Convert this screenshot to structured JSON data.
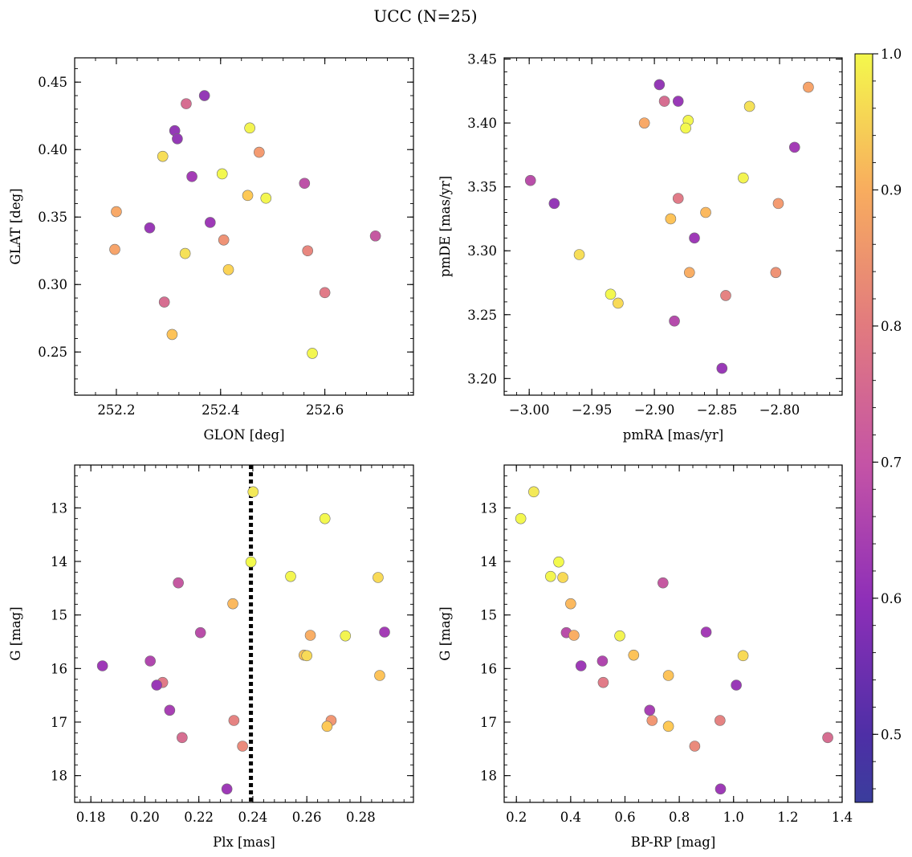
{
  "figure": {
    "title": "UCC (N=25)"
  },
  "colorbar": {
    "min": 0.45,
    "max": 1.0,
    "ticks": [
      0.5,
      0.6,
      0.7,
      0.8,
      0.9,
      1.0
    ],
    "tick_labels": [
      "0.5",
      "0.6",
      "0.7",
      "0.8",
      "0.9",
      "1.0"
    ],
    "colormap": "plasma"
  },
  "chart_data": [
    {
      "type": "scatter",
      "panel": "top-left",
      "xlabel": "GLON [deg]",
      "ylabel": "GLAT [deg]",
      "xlim": [
        252.12,
        252.77
      ],
      "ylim": [
        0.218,
        0.468
      ],
      "xticks": [
        252.2,
        252.4,
        252.6
      ],
      "xtick_labels": [
        "252.2",
        "252.4",
        "252.6"
      ],
      "yticks": [
        0.25,
        0.3,
        0.35,
        0.4,
        0.45
      ],
      "ytick_labels": [
        "0.25",
        "0.30",
        "0.35",
        "0.40",
        "0.45"
      ],
      "x_minor_step": 0.04,
      "y_minor_step": 0.01,
      "points": [
        {
          "x": 252.369,
          "y": 0.44,
          "c": 0.47
        },
        {
          "x": 252.334,
          "y": 0.434,
          "c": 0.63
        },
        {
          "x": 252.312,
          "y": 0.414,
          "c": 0.47
        },
        {
          "x": 252.456,
          "y": 0.416,
          "c": 0.97
        },
        {
          "x": 252.317,
          "y": 0.408,
          "c": 0.47
        },
        {
          "x": 252.474,
          "y": 0.398,
          "c": 0.74
        },
        {
          "x": 252.289,
          "y": 0.395,
          "c": 0.89
        },
        {
          "x": 252.403,
          "y": 0.382,
          "c": 0.99
        },
        {
          "x": 252.345,
          "y": 0.38,
          "c": 0.5
        },
        {
          "x": 252.561,
          "y": 0.375,
          "c": 0.56
        },
        {
          "x": 252.452,
          "y": 0.366,
          "c": 0.83
        },
        {
          "x": 252.487,
          "y": 0.364,
          "c": 0.98
        },
        {
          "x": 252.2,
          "y": 0.354,
          "c": 0.77
        },
        {
          "x": 252.38,
          "y": 0.346,
          "c": 0.49
        },
        {
          "x": 252.264,
          "y": 0.342,
          "c": 0.48
        },
        {
          "x": 252.697,
          "y": 0.336,
          "c": 0.58
        },
        {
          "x": 252.406,
          "y": 0.333,
          "c": 0.72
        },
        {
          "x": 252.197,
          "y": 0.326,
          "c": 0.76
        },
        {
          "x": 252.567,
          "y": 0.325,
          "c": 0.69
        },
        {
          "x": 252.332,
          "y": 0.323,
          "c": 0.9
        },
        {
          "x": 252.415,
          "y": 0.311,
          "c": 0.86
        },
        {
          "x": 252.6,
          "y": 0.294,
          "c": 0.66
        },
        {
          "x": 252.292,
          "y": 0.287,
          "c": 0.63
        },
        {
          "x": 252.307,
          "y": 0.263,
          "c": 0.82
        },
        {
          "x": 252.576,
          "y": 0.249,
          "c": 0.98
        }
      ]
    },
    {
      "type": "scatter",
      "panel": "top-right",
      "xlabel": "pmRA [mas/yr]",
      "ylabel": "pmDE [mas/yr]",
      "xlim": [
        -3.02,
        -2.75
      ],
      "ylim": [
        3.187,
        3.451
      ],
      "xticks": [
        -3.0,
        -2.95,
        -2.9,
        -2.85,
        -2.8
      ],
      "xtick_labels": [
        "−3.00",
        "−2.95",
        "−2.90",
        "−2.85",
        "−2.80"
      ],
      "yticks": [
        3.2,
        3.25,
        3.3,
        3.35,
        3.4,
        3.45
      ],
      "ytick_labels": [
        "3.20",
        "3.25",
        "3.30",
        "3.35",
        "3.40",
        "3.45"
      ],
      "x_minor_step": 0.01,
      "y_minor_step": 0.01,
      "points": [
        {
          "x": -2.896,
          "y": 3.43,
          "c": 0.47
        },
        {
          "x": -2.777,
          "y": 3.428,
          "c": 0.76
        },
        {
          "x": -2.892,
          "y": 3.417,
          "c": 0.63
        },
        {
          "x": -2.881,
          "y": 3.417,
          "c": 0.48
        },
        {
          "x": -2.824,
          "y": 3.413,
          "c": 0.9
        },
        {
          "x": -2.873,
          "y": 3.402,
          "c": 0.98
        },
        {
          "x": -2.908,
          "y": 3.4,
          "c": 0.77
        },
        {
          "x": -2.875,
          "y": 3.396,
          "c": 0.99
        },
        {
          "x": -2.788,
          "y": 3.381,
          "c": 0.5
        },
        {
          "x": -2.829,
          "y": 3.357,
          "c": 0.97
        },
        {
          "x": -2.999,
          "y": 3.355,
          "c": 0.55
        },
        {
          "x": -2.98,
          "y": 3.337,
          "c": 0.47
        },
        {
          "x": -2.801,
          "y": 3.337,
          "c": 0.74
        },
        {
          "x": -2.881,
          "y": 3.341,
          "c": 0.66
        },
        {
          "x": -2.859,
          "y": 3.33,
          "c": 0.8
        },
        {
          "x": -2.887,
          "y": 3.325,
          "c": 0.82
        },
        {
          "x": -2.868,
          "y": 3.31,
          "c": 0.49
        },
        {
          "x": -2.96,
          "y": 3.297,
          "c": 0.89
        },
        {
          "x": -2.803,
          "y": 3.283,
          "c": 0.72
        },
        {
          "x": -2.872,
          "y": 3.283,
          "c": 0.78
        },
        {
          "x": -2.935,
          "y": 3.266,
          "c": 0.99
        },
        {
          "x": -2.843,
          "y": 3.265,
          "c": 0.68
        },
        {
          "x": -2.929,
          "y": 3.259,
          "c": 0.88
        },
        {
          "x": -2.884,
          "y": 3.245,
          "c": 0.54
        },
        {
          "x": -2.846,
          "y": 3.208,
          "c": 0.48
        }
      ]
    },
    {
      "type": "scatter",
      "panel": "bottom-left",
      "xlabel": "Plx [mas]",
      "ylabel": "G [mag]",
      "xlim": [
        0.174,
        0.2995
      ],
      "ylim": [
        18.5,
        12.2
      ],
      "y_inverted": true,
      "xticks": [
        0.18,
        0.2,
        0.22,
        0.24,
        0.26,
        0.28
      ],
      "xtick_labels": [
        "0.18",
        "0.20",
        "0.22",
        "0.24",
        "0.26",
        "0.28"
      ],
      "yticks": [
        13,
        14,
        15,
        16,
        17,
        18
      ],
      "ytick_labels": [
        "13",
        "14",
        "15",
        "16",
        "17",
        "18"
      ],
      "x_minor_step": 0.004,
      "y_minor_step": 0.2,
      "vline": {
        "x": 0.2393,
        "style": "dotted",
        "color": "#000000"
      },
      "points": [
        {
          "x": 0.2401,
          "y": 12.7,
          "c": 0.92
        },
        {
          "x": 0.2667,
          "y": 13.2,
          "c": 0.99
        },
        {
          "x": 0.2393,
          "y": 14.01,
          "c": 1.0
        },
        {
          "x": 0.254,
          "y": 14.28,
          "c": 0.98
        },
        {
          "x": 0.2864,
          "y": 14.3,
          "c": 0.88
        },
        {
          "x": 0.2124,
          "y": 14.4,
          "c": 0.58
        },
        {
          "x": 0.2326,
          "y": 14.79,
          "c": 0.8
        },
        {
          "x": 0.2206,
          "y": 15.33,
          "c": 0.55
        },
        {
          "x": 0.2613,
          "y": 15.38,
          "c": 0.78
        },
        {
          "x": 0.2743,
          "y": 15.39,
          "c": 0.97
        },
        {
          "x": 0.2888,
          "y": 15.32,
          "c": 0.5
        },
        {
          "x": 0.259,
          "y": 15.75,
          "c": 0.82
        },
        {
          "x": 0.26,
          "y": 15.76,
          "c": 0.88
        },
        {
          "x": 0.1843,
          "y": 15.95,
          "c": 0.49
        },
        {
          "x": 0.202,
          "y": 15.86,
          "c": 0.53
        },
        {
          "x": 0.287,
          "y": 16.13,
          "c": 0.82
        },
        {
          "x": 0.2066,
          "y": 16.26,
          "c": 0.66
        },
        {
          "x": 0.2044,
          "y": 16.31,
          "c": 0.48
        },
        {
          "x": 0.2092,
          "y": 16.78,
          "c": 0.51
        },
        {
          "x": 0.233,
          "y": 16.97,
          "c": 0.68
        },
        {
          "x": 0.269,
          "y": 16.97,
          "c": 0.73
        },
        {
          "x": 0.2675,
          "y": 17.08,
          "c": 0.83
        },
        {
          "x": 0.2138,
          "y": 17.29,
          "c": 0.63
        },
        {
          "x": 0.2362,
          "y": 17.45,
          "c": 0.7
        },
        {
          "x": 0.2304,
          "y": 18.25,
          "c": 0.49
        }
      ]
    },
    {
      "type": "scatter",
      "panel": "bottom-right",
      "xlabel": "BP-RP [mag]",
      "ylabel": "G [mag]",
      "xlim": [
        0.155,
        1.4
      ],
      "ylim": [
        18.5,
        12.2
      ],
      "y_inverted": true,
      "xticks": [
        0.2,
        0.4,
        0.6,
        0.8,
        1.0,
        1.2,
        1.4
      ],
      "xtick_labels": [
        "0.2",
        "0.4",
        "0.6",
        "0.8",
        "1.0",
        "1.2",
        "1.4"
      ],
      "yticks": [
        13,
        14,
        15,
        16,
        17,
        18
      ],
      "ytick_labels": [
        "13",
        "14",
        "15",
        "16",
        "17",
        "18"
      ],
      "x_minor_step": 0.05,
      "y_minor_step": 0.2,
      "points": [
        {
          "x": 0.264,
          "y": 12.7,
          "c": 0.92
        },
        {
          "x": 0.216,
          "y": 13.2,
          "c": 0.99
        },
        {
          "x": 0.356,
          "y": 14.01,
          "c": 1.0
        },
        {
          "x": 0.326,
          "y": 14.28,
          "c": 0.98
        },
        {
          "x": 0.371,
          "y": 14.3,
          "c": 0.88
        },
        {
          "x": 0.74,
          "y": 14.4,
          "c": 0.58
        },
        {
          "x": 0.4,
          "y": 14.79,
          "c": 0.8
        },
        {
          "x": 0.384,
          "y": 15.33,
          "c": 0.55
        },
        {
          "x": 0.412,
          "y": 15.38,
          "c": 0.78
        },
        {
          "x": 0.581,
          "y": 15.39,
          "c": 0.97
        },
        {
          "x": 0.899,
          "y": 15.32,
          "c": 0.5
        },
        {
          "x": 0.632,
          "y": 15.75,
          "c": 0.82
        },
        {
          "x": 1.035,
          "y": 15.76,
          "c": 0.88
        },
        {
          "x": 0.438,
          "y": 15.95,
          "c": 0.49
        },
        {
          "x": 0.517,
          "y": 15.86,
          "c": 0.53
        },
        {
          "x": 0.76,
          "y": 16.13,
          "c": 0.82
        },
        {
          "x": 0.52,
          "y": 16.26,
          "c": 0.66
        },
        {
          "x": 1.01,
          "y": 16.31,
          "c": 0.48
        },
        {
          "x": 0.691,
          "y": 16.78,
          "c": 0.51
        },
        {
          "x": 0.95,
          "y": 16.97,
          "c": 0.68
        },
        {
          "x": 0.7,
          "y": 16.97,
          "c": 0.73
        },
        {
          "x": 0.76,
          "y": 17.08,
          "c": 0.83
        },
        {
          "x": 1.347,
          "y": 17.29,
          "c": 0.63
        },
        {
          "x": 0.857,
          "y": 17.45,
          "c": 0.7
        },
        {
          "x": 0.952,
          "y": 18.25,
          "c": 0.49
        }
      ]
    }
  ]
}
